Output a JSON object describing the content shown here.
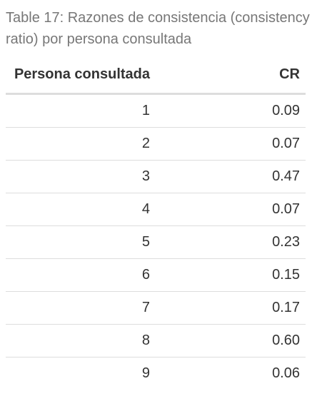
{
  "caption": "Table 17: Razones de consistencia (consistency ratio) por persona consultada",
  "table": {
    "headers": [
      "Persona consultada",
      "CR"
    ],
    "rows": [
      [
        "1",
        "0.09"
      ],
      [
        "2",
        "0.07"
      ],
      [
        "3",
        "0.47"
      ],
      [
        "4",
        "0.07"
      ],
      [
        "5",
        "0.23"
      ],
      [
        "6",
        "0.15"
      ],
      [
        "7",
        "0.17"
      ],
      [
        "8",
        "0.60"
      ],
      [
        "9",
        "0.06"
      ]
    ]
  }
}
